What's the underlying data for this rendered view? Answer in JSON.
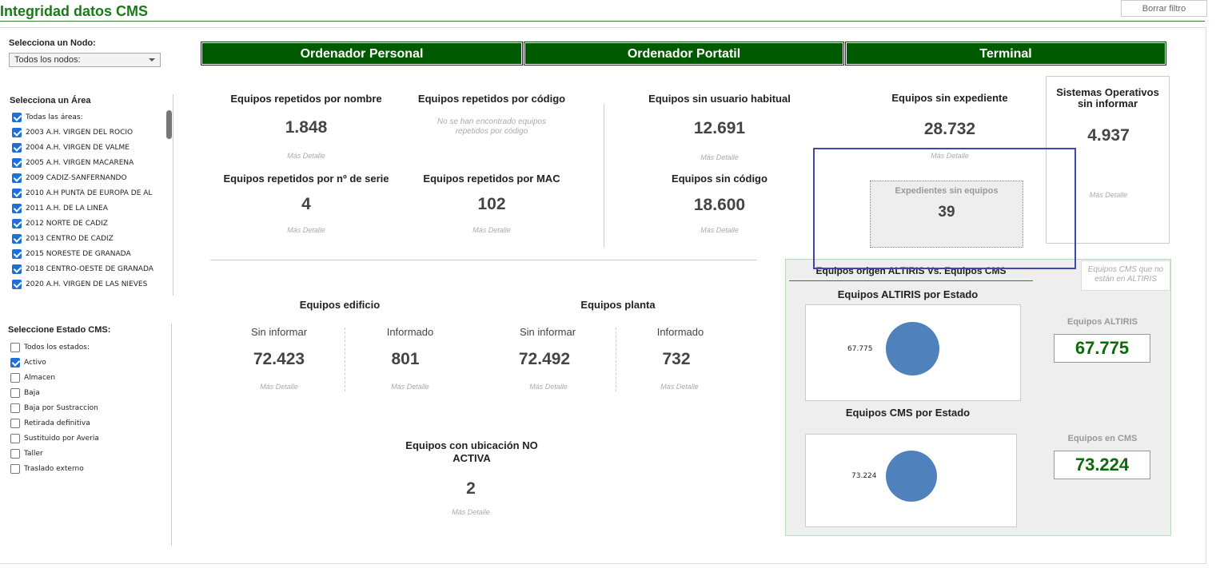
{
  "header": {
    "title": "Integridad datos CMS",
    "clear_filter": "Borrar filtro"
  },
  "filters": {
    "node": {
      "label": "Selecciona un Nodo:",
      "value": "Todos los nodos:"
    },
    "area": {
      "label": "Selecciona un Área",
      "items": [
        {
          "label": "Todas las áreas:",
          "checked": true
        },
        {
          "label": "2003 A.H. VIRGEN DEL ROCIO",
          "checked": true
        },
        {
          "label": "2004 A.H. VIRGEN DE VALME",
          "checked": true
        },
        {
          "label": "2005 A.H. VIRGEN MACARENA",
          "checked": true
        },
        {
          "label": "2009 CADIZ-SANFERNANDO",
          "checked": true
        },
        {
          "label": "2010 A.H PUNTA DE EUROPA DE AL",
          "checked": true
        },
        {
          "label": "2011 A.H. DE LA LINEA",
          "checked": true
        },
        {
          "label": "2012 NORTE DE CADIZ",
          "checked": true
        },
        {
          "label": "2013 CENTRO DE CADIZ",
          "checked": true
        },
        {
          "label": "2015 NORESTE DE GRANADA",
          "checked": true
        },
        {
          "label": "2018 CENTRO-OESTE DE GRANADA",
          "checked": true
        },
        {
          "label": "2020 A.H. VIRGEN DE LAS NIEVES",
          "checked": true
        }
      ]
    },
    "state": {
      "label": "Seleccione Estado CMS:",
      "items": [
        {
          "label": "Todos los estados:",
          "checked": false
        },
        {
          "label": "Activo",
          "checked": true
        },
        {
          "label": "Almacen",
          "checked": false
        },
        {
          "label": "Baja",
          "checked": false
        },
        {
          "label": "Baja por Sustraccion",
          "checked": false
        },
        {
          "label": "Retirada definitiva",
          "checked": false
        },
        {
          "label": "Sustituido por Averia",
          "checked": false
        },
        {
          "label": "Taller",
          "checked": false
        },
        {
          "label": "Traslado externo",
          "checked": false
        }
      ]
    }
  },
  "tabs": [
    "Ordenador Personal",
    "Ordenador Portatil",
    "Terminal"
  ],
  "more_label": "Más Detalle",
  "kpis": {
    "rep_nombre": {
      "title": "Equipos repetidos por nombre",
      "value": "1.848"
    },
    "rep_codigo": {
      "title": "Equipos repetidos por código",
      "note": "No se han encontrado equipos repetidos por código"
    },
    "rep_serie": {
      "title": "Equipos repetidos por nº de serie",
      "value": "4"
    },
    "rep_mac": {
      "title": "Equipos repetidos por MAC",
      "value": "102"
    },
    "sin_usuario": {
      "title": "Equipos sin usuario habitual",
      "value": "12.691"
    },
    "sin_codigo": {
      "title": "Equipos sin código",
      "value": "18.600"
    },
    "sin_expediente": {
      "title": "Equipos sin expediente",
      "value": "28.732"
    },
    "exp_sin_equipos": {
      "title": "Expedientes sin equipos",
      "value": "39"
    },
    "so": {
      "title": "Sistemas Operativos sin informar",
      "value": "4.937"
    }
  },
  "edificio": {
    "title": "Equipos edificio",
    "sin_label": "Sin informar",
    "sin_value": "72.423",
    "inf_label": "Informado",
    "inf_value": "801"
  },
  "planta": {
    "title": "Equipos planta",
    "sin_label": "Sin informar",
    "sin_value": "72.492",
    "inf_label": "Informado",
    "inf_value": "732"
  },
  "ubicacion": {
    "title": "Equipos con ubicación NO ACTIVA",
    "value": "2"
  },
  "altiris": {
    "title": "Equipos origen ALTIRIS Vs. Equipos CMS",
    "note": "Equipos CMS que no están en ALTIRIS",
    "altiris_chart_title": "Equipos ALTIRIS por Estado",
    "altiris_label": "67.775",
    "cms_chart_title": "Equipos CMS por Estado",
    "cms_label": "73.224",
    "altiris_kpi_label": "Equipos ALTIRIS",
    "altiris_kpi_value": "67.775",
    "cms_kpi_label": "Equipos en CMS",
    "cms_kpi_value": "73.224"
  },
  "colors": {
    "accent_green": "#005a00",
    "value_green": "#0b6b0b",
    "pie_blue": "#4f81bd",
    "highlight": "#3f46b4"
  }
}
